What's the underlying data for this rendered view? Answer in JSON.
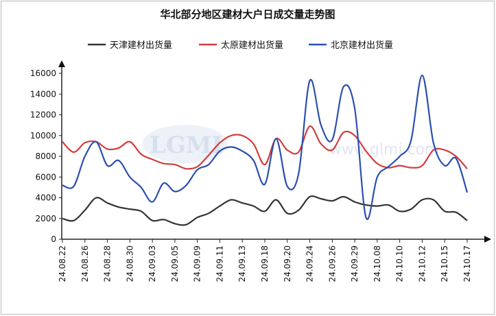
{
  "chart_data": {
    "type": "line",
    "title": "华北部分地区建材大户日成交量走势图",
    "watermark": {
      "logo": "LGMI",
      "site": "www.glmi.com"
    },
    "xlabel": "",
    "ylabel": "",
    "ylim": [
      0,
      16000
    ],
    "yticks": [
      0,
      2000,
      4000,
      6000,
      8000,
      10000,
      12000,
      14000,
      16000
    ],
    "grid": false,
    "legend_position": "top",
    "x_ticks": [
      "24.08.22",
      "24.08.26",
      "24.08.28",
      "24.08.30",
      "24.09.03",
      "24.09.05",
      "24.09.09",
      "24.09.11",
      "24.09.13",
      "24.09.18",
      "24.09.20",
      "24.09.24",
      "24.09.26",
      "24.09.29",
      "24.10.08",
      "24.10.10",
      "24.10.12",
      "24.10.15",
      "24.10.17"
    ],
    "x": [
      "24.08.22",
      "24.08.23",
      "24.08.26",
      "24.08.27",
      "24.08.28",
      "24.08.29",
      "24.08.30",
      "24.09.02",
      "24.09.03",
      "24.09.04",
      "24.09.05",
      "24.09.06",
      "24.09.09",
      "24.09.10",
      "24.09.11",
      "24.09.12",
      "24.09.13",
      "24.09.14",
      "24.09.18",
      "24.09.19",
      "24.09.20",
      "24.09.23",
      "24.09.24",
      "24.09.25",
      "24.09.26",
      "24.09.27",
      "24.09.29",
      "24.09.30",
      "24.10.08",
      "24.10.09",
      "24.10.10",
      "24.10.11",
      "24.10.12",
      "24.10.14",
      "24.10.15",
      "24.10.16",
      "24.10.17"
    ],
    "series": [
      {
        "name": "天津建材出货量",
        "color": "#333333",
        "values": [
          2000,
          1800,
          2800,
          4000,
          3500,
          3100,
          2900,
          2700,
          1800,
          1900,
          1500,
          1400,
          2100,
          2500,
          3200,
          3800,
          3500,
          3200,
          2700,
          3800,
          2500,
          2800,
          4100,
          3900,
          3700,
          4100,
          3600,
          3300,
          3200,
          3300,
          2700,
          2900,
          3800,
          3800,
          2700,
          2600,
          1800
        ]
      },
      {
        "name": "太原建材出货量",
        "color": "#d23d3d",
        "values": [
          9400,
          8400,
          9300,
          9400,
          8700,
          8800,
          9400,
          8200,
          7700,
          7300,
          7200,
          6800,
          7000,
          8100,
          9300,
          10000,
          10000,
          9200,
          7200,
          9700,
          8600,
          8400,
          10900,
          9200,
          8600,
          10300,
          10000,
          8500,
          7300,
          6900,
          7100,
          6900,
          7100,
          8600,
          8600,
          8000,
          6800
        ]
      },
      {
        "name": "北京建材出货量",
        "color": "#2b4fae",
        "values": [
          5200,
          5100,
          8000,
          9400,
          7100,
          7600,
          6000,
          5000,
          3600,
          5400,
          4600,
          5200,
          6700,
          7200,
          8500,
          8900,
          8500,
          7600,
          5300,
          9700,
          5100,
          6300,
          15300,
          11000,
          9600,
          14700,
          12600,
          2100,
          6000,
          7000,
          8000,
          9500,
          15800,
          9300,
          7100,
          7800,
          4500
        ]
      }
    ]
  }
}
